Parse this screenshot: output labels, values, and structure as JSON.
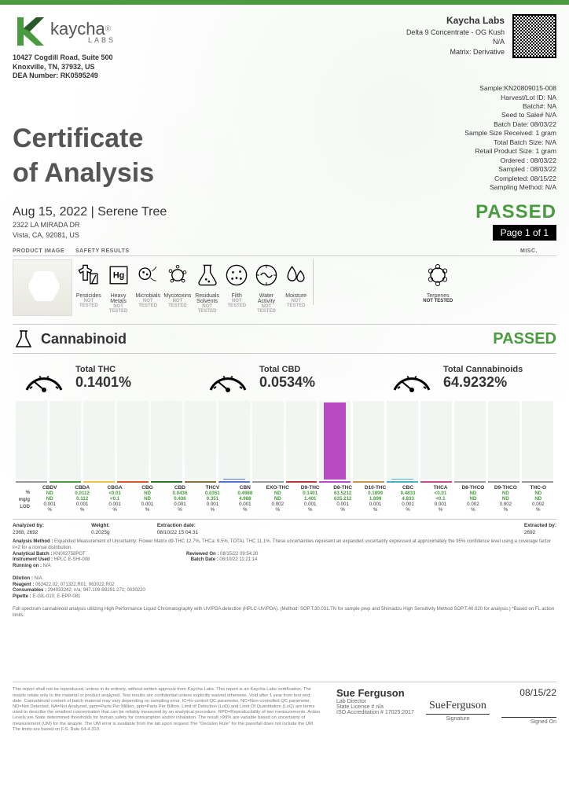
{
  "header": {
    "company": "kaycha",
    "labs": "LABS",
    "address1": "10427 Cogdill Road, Suite 500",
    "address2": "Knoxville, TN, 37932, US",
    "dea_label": "DEA Number:",
    "dea": "RK0595249",
    "lab_name": "Kaycha Labs",
    "product": "Delta 9 Concentrate - OG Kush",
    "na": "N/A",
    "matrix": "Matrix: Derivative"
  },
  "title1": "Certificate",
  "title2": "of Analysis",
  "sample": {
    "sample": "Sample:KN20809015-008",
    "harvest": "Harvest/Lot ID: NA",
    "batch": "Batch#: NA",
    "seed": "Seed to Sale# N/A",
    "batchdate": "Batch Date: 08/03/22",
    "sampsize": "Sample Size Received: 1 gram",
    "totbatch": "Total Batch Size: N/A",
    "retail": "Retail Product Size: 1 gram",
    "ordered": "Ordered : 08/03/22",
    "sampled": "Sampled : 08/03/22",
    "completed": "Completed: 08/15/22",
    "method": "Sampling Method: N/A"
  },
  "passed": "PASSED",
  "pagenum": "Page 1 of 1",
  "client": {
    "date": "Aug 15, 2022 | Serene Tree",
    "addr1": "2322 LA MIRADA DR",
    "addr2": "Vista, CA, 92081, US"
  },
  "sections": {
    "prod": "PRODUCT IMAGE",
    "safety": "SAFETY RESULTS",
    "misc": "MISC."
  },
  "safety": [
    {
      "label": "Pesticides",
      "status": "NOT TESTED"
    },
    {
      "label": "Heavy Metals",
      "status": "NOT TESTED"
    },
    {
      "label": "Microbials",
      "status": "NOT TESTED"
    },
    {
      "label": "Mycotoxins",
      "status": "NOT TESTED"
    },
    {
      "label": "Residuals Solvents",
      "status": "NOT TESTED"
    },
    {
      "label": "Filth",
      "status": "NOT TESTED"
    },
    {
      "label": "Water Activity",
      "status": "NOT TESTED"
    },
    {
      "label": "Moisture",
      "status": "NOT TESTED"
    }
  ],
  "terpenes": {
    "label": "Terpenes",
    "status": "NOT TESTED"
  },
  "cann_header": "Cannabinoid",
  "cann_passed": "PASSED",
  "gauges": [
    {
      "label": "Total THC",
      "value": "0.1401%"
    },
    {
      "label": "Total CBD",
      "value": "0.0534%"
    },
    {
      "label": "Total Cannabinoids",
      "value": "64.9232%"
    }
  ],
  "row_labels": [
    "%",
    "mg/g",
    "LOD",
    ""
  ],
  "analytes": [
    {
      "name": "CBDV",
      "pct": "ND",
      "mgg": "ND",
      "lod": "0.001",
      "u": "%",
      "color": "#999",
      "bar": 0
    },
    {
      "name": "CBDA",
      "pct": "0.0112",
      "mgg": "0.112",
      "lod": "0.001",
      "u": "%",
      "color": "#4a9b3f",
      "bar": 0
    },
    {
      "name": "CBGA",
      "pct": "<0.01",
      "mgg": "<0.1",
      "lod": "0.001",
      "u": "%",
      "color": "#e8c547",
      "bar": 0
    },
    {
      "name": "CBG",
      "pct": "ND",
      "mgg": "ND",
      "lod": "0.001",
      "u": "%",
      "color": "#d4572a",
      "bar": 0
    },
    {
      "name": "CBD",
      "pct": "0.0436",
      "mgg": "0.436",
      "lod": "0.001",
      "u": "%",
      "color": "#2a7a2a",
      "bar": 0
    },
    {
      "name": "THCV",
      "pct": "0.0351",
      "mgg": "0.351",
      "lod": "0.001",
      "u": "%",
      "color": "#8b6f3e",
      "bar": 0
    },
    {
      "name": "CBN",
      "pct": "0.4988",
      "mgg": "4.988",
      "lod": "0.001",
      "u": "%",
      "color": "#5577cc",
      "bar": 1
    },
    {
      "name": "EXO-THC",
      "pct": "ND",
      "mgg": "ND",
      "lod": "0.002",
      "u": "%",
      "color": "#999",
      "bar": 0
    },
    {
      "name": "D9-THC",
      "pct": "0.1401",
      "mgg": "1.401",
      "lod": "0.001",
      "u": "%",
      "color": "#c23838",
      "bar": 0
    },
    {
      "name": "D8-THC",
      "pct": "63.5212",
      "mgg": "635.212",
      "lod": "0.001",
      "u": "%",
      "color": "#b94bc2",
      "bar": 98
    },
    {
      "name": "D10-THC",
      "pct": "0.1899",
      "mgg": "1.899",
      "lod": "0.001",
      "u": "%",
      "color": "#c2974b",
      "bar": 0
    },
    {
      "name": "CBC",
      "pct": "0.4833",
      "mgg": "4.833",
      "lod": "0.001",
      "u": "%",
      "color": "#4bb0c2",
      "bar": 1
    },
    {
      "name": "THCA",
      "pct": "<0.01",
      "mgg": "<0.1",
      "lod": "0.001",
      "u": "%",
      "color": "#c24b8e",
      "bar": 0
    },
    {
      "name": "D8-THCO",
      "pct": "ND",
      "mgg": "ND",
      "lod": "0.002",
      "u": "%",
      "color": "#999",
      "bar": 0
    },
    {
      "name": "D9-THCO",
      "pct": "ND",
      "mgg": "ND",
      "lod": "0.002",
      "u": "%",
      "color": "#999",
      "bar": 0
    },
    {
      "name": "THC-O",
      "pct": "ND",
      "mgg": "ND",
      "lod": "0.002",
      "u": "%",
      "color": "#999",
      "bar": 0
    }
  ],
  "meta": {
    "analyzed_l": "Analyzed by:",
    "analyzed": "2368, 2692",
    "weight_l": "Weight:",
    "weight": "0.2025g",
    "extdate_l": "Extraction date:",
    "extdate": "08/10/22 15:04:31",
    "extby_l": "Extracted by:",
    "extby": "2692"
  },
  "analysis": {
    "method_l": "Analysis Method :",
    "method": "Expanded Measurement of Uncertainty: Flower Matrix d9-THC 12.7%, THCa: 9.5%, TOTAL THC 11.1%. These uncertainties represent an expanded uncertainty expressed at approximately the 95% confidence level using a coverage factor k=2 for a normal distribution.",
    "abatch_l": "Analytical Batch :",
    "abatch": "KN002758POT",
    "inst_l": "Instrument Used :",
    "inst": "HPLC E-SHI-008",
    "run_l": "Running on :",
    "run": "N/A",
    "rev_l": "Reviewed On :",
    "rev": "08/15/22 09:54:20",
    "bd_l": "Batch Date :",
    "bd": "08/10/22 11:21:14",
    "dil_l": "Dilution :",
    "dil": "N/A",
    "reag_l": "Reagent :",
    "reag": "062422.02; 071322.R01; 063022.R02",
    "cons_l": "Consumables :",
    "cons": "294033242; n/a; 947.109 B9291.271; 0030220",
    "pip_l": "Pipette :",
    "pip": "E-GIL-010; E-EPP-081",
    "full": "Full spectrum cannabinoid analysis utilizing High Performance Liquid Chromatography with UV/PDA detection (HPLC-UV/PDA). (Method: SOP.T.30.031.TN for sample prep and Shimadzu High Sensitivity Method SOP.T.40.020 for analysis.) *Based on FL action limits."
  },
  "footer": {
    "disclaimer": "This report shall not be reproduced, unless in its entirety, without written approval from Kaycha Labs. This report is an Kaycha Labs certification. The results relate only to the material or product analyzed. Test results are confidential unless explicitly waived otherwise. Void after 1 year from test end date. Cannabinoid content of batch material may vary depending on sampling error. IC=In-control QC parameter, NC=Non-controlled QC parameter, ND=Not Detected, NA=Not Analyzed, ppm=Parts Per Million, ppb=Parts Per Billion. Limit of Detection (LoD) and Limit Of Quantitation (LoQ) are terms used to describe the smallest concentration that can be reliably measured by an analytical procedure. RPD=Reproducibility of two measurements. Action Levels are State determined thresholds for human safety for consumption and/or inhalation. The result >99% are variable based on uncertainty of measurement (UM) for the analyte. The UM error is available from the lab upon request.The \"Decision Rule\" for the pass/fail does not include the UM. The limits are based on F.S. Rule 64-4.310.",
    "name": "Sue Ferguson",
    "role": "Lab Director",
    "lic_l": "State License # n/a",
    "iso": "ISO Accreditation # 17025:2017",
    "sig_l": "Signature",
    "date": "08/15/22",
    "signed": "Signed On"
  }
}
